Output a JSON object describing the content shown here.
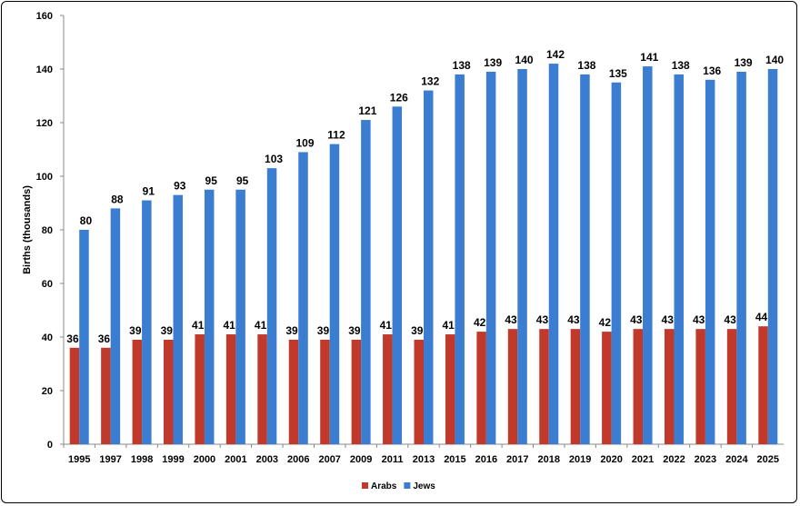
{
  "chart_data": {
    "type": "bar",
    "title": "",
    "xlabel": "",
    "ylabel": "Births (thousands)",
    "ylim": [
      0,
      160
    ],
    "yticks": [
      0,
      20,
      40,
      60,
      80,
      100,
      120,
      140,
      160
    ],
    "grid": false,
    "legend_placement": "bottom",
    "categories": [
      "1995",
      "1997",
      "1998",
      "1999",
      "2000",
      "2001",
      "2003",
      "2006",
      "2007",
      "2009",
      "2011",
      "2013",
      "2015",
      "2016",
      "2017",
      "2018",
      "2019",
      "2020",
      "2021",
      "2022",
      "2023",
      "2024",
      "2025"
    ],
    "series": [
      {
        "name": "Arabs",
        "color": "#c0392b",
        "values": [
          36,
          36,
          39,
          39,
          41,
          41,
          41,
          39,
          39,
          39,
          41,
          39,
          41,
          42,
          43,
          43,
          43,
          42,
          43,
          43,
          43,
          43,
          44
        ]
      },
      {
        "name": "Jews",
        "color": "#3a7dd1",
        "values": [
          80,
          88,
          91,
          93,
          95,
          95,
          103,
          109,
          112,
          121,
          126,
          132,
          138,
          139,
          140,
          142,
          138,
          135,
          141,
          138,
          136,
          139,
          140
        ]
      }
    ]
  }
}
